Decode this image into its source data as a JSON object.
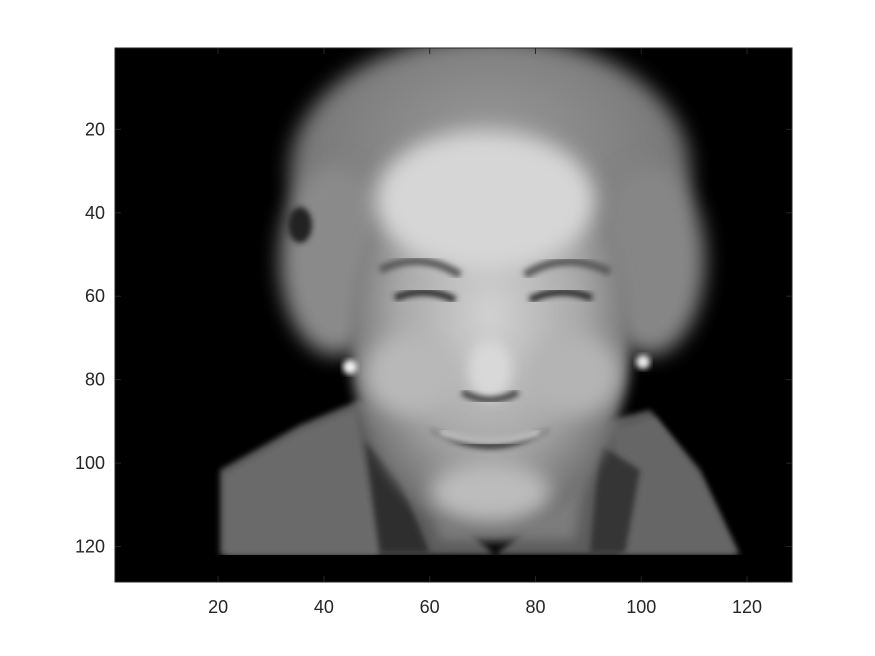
{
  "chart_data": {
    "type": "heatmap",
    "title": "",
    "xlabel": "",
    "ylabel": "",
    "colormap": "gray",
    "image_size": [
      128,
      128
    ],
    "xlim": [
      0.5,
      128.5
    ],
    "ylim": [
      0.5,
      128.5
    ],
    "y_direction": "reverse",
    "xticks": [
      20,
      40,
      60,
      80,
      100,
      120
    ],
    "yticks": [
      20,
      40,
      60,
      80,
      100,
      120
    ],
    "xtick_labels": [
      "20",
      "40",
      "60",
      "80",
      "100",
      "120"
    ],
    "ytick_labels": [
      "20",
      "40",
      "60",
      "80",
      "100",
      "120"
    ],
    "grid": false,
    "image_content": "grayscale portrait photograph of a smiling elderly woman with short light hair and pearl earrings, on a black background"
  },
  "colors": {
    "background": "#ffffff",
    "axes_background": "#000000",
    "tick_text": "#262626",
    "axis_line": "#262626"
  }
}
